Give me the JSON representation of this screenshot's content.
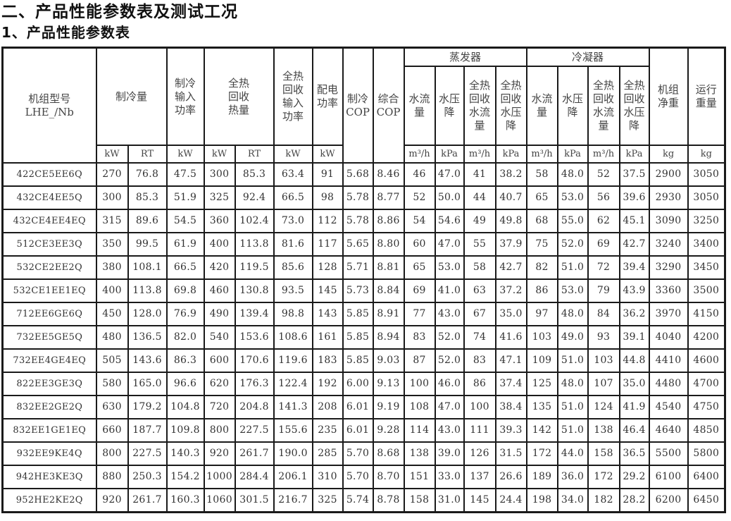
{
  "title": "二、产品性能参数表及测试工况",
  "subtitle": "1、产品性能参数表",
  "table": {
    "headers": {
      "model": "机组型号\nLHE_/Nb",
      "cooling_capacity": "制冷量",
      "cooling_input": "制冷\n输入\n功率",
      "heat_recovery": "全热\n回收\n热量",
      "heat_recovery_input": "全热\n回收\n输入\n功率",
      "power_distribution": "配电\n功率",
      "cooling_cop": "制冷\nCOP",
      "overall_cop": "综合\nCOP",
      "evaporator": "蒸发器",
      "condenser": "冷凝器",
      "water_flow": "水流\n量",
      "pressure_drop": "水压\n降",
      "hr_water_flow": "全热\n回收\n水流\n量",
      "hr_pressure_drop": "全热\n回收\n水压\n降",
      "net_weight": "机组\n净重",
      "operating_weight": "运行\n重量"
    },
    "units": [
      "kW",
      "RT",
      "kW",
      "kW",
      "RT",
      "kW",
      "kW",
      "m³/h",
      "kPa",
      "m³/h",
      "kPa",
      "m³/h",
      "kPa",
      "m³/h",
      "kPa",
      "kg",
      "kg"
    ],
    "rows": [
      [
        "422CE5EE6Q",
        "270",
        "76.8",
        "47.5",
        "300",
        "85.3",
        "63.4",
        "91",
        "5.68",
        "8.46",
        "46",
        "47.0",
        "41",
        "38.2",
        "58",
        "48.0",
        "52",
        "37.5",
        "2900",
        "3050"
      ],
      [
        "432CE4EE5Q",
        "300",
        "85.3",
        "51.9",
        "325",
        "92.4",
        "66.5",
        "98",
        "5.78",
        "8.77",
        "52",
        "50.0",
        "44",
        "40.7",
        "65",
        "53.0",
        "56",
        "39.6",
        "2930",
        "3050"
      ],
      [
        "432CE4EE4EQ",
        "315",
        "89.6",
        "54.5",
        "360",
        "102.4",
        "73.0",
        "112",
        "5.78",
        "8.86",
        "54",
        "54.6",
        "49",
        "49.8",
        "68",
        "55.0",
        "62",
        "45.1",
        "3090",
        "3250"
      ],
      [
        "512CE3EE3Q",
        "350",
        "99.5",
        "61.9",
        "400",
        "113.8",
        "81.6",
        "117",
        "5.65",
        "8.80",
        "60",
        "47.0",
        "55",
        "37.9",
        "75",
        "52.0",
        "69",
        "42.7",
        "3240",
        "3400"
      ],
      [
        "532CE2EE2Q",
        "380",
        "108.1",
        "66.5",
        "420",
        "119.5",
        "85.6",
        "128",
        "5.71",
        "8.81",
        "65",
        "53.0",
        "58",
        "42.7",
        "82",
        "51.0",
        "72",
        "39.4",
        "3290",
        "3450"
      ],
      [
        "532CE1EE1EQ",
        "400",
        "113.8",
        "69.8",
        "460",
        "130.8",
        "93.5",
        "145",
        "5.73",
        "8.84",
        "69",
        "41.0",
        "63",
        "37.2",
        "86",
        "53.0",
        "79",
        "43.9",
        "3360",
        "3500"
      ],
      [
        "712EE6GE6Q",
        "450",
        "128.0",
        "76.9",
        "490",
        "139.4",
        "98.8",
        "143",
        "5.85",
        "8.91",
        "77",
        "43.0",
        "67",
        "35.0",
        "97",
        "48.0",
        "84",
        "36.2",
        "3970",
        "4150"
      ],
      [
        "732EE5GE5Q",
        "480",
        "136.5",
        "82.0",
        "540",
        "153.6",
        "108.6",
        "161",
        "5.85",
        "8.94",
        "83",
        "52.0",
        "74",
        "41.6",
        "103",
        "49.0",
        "93",
        "39.1",
        "4040",
        "4200"
      ],
      [
        "732EE4GE4EQ",
        "505",
        "143.6",
        "86.3",
        "600",
        "170.6",
        "119.6",
        "183",
        "5.85",
        "9.03",
        "87",
        "52.0",
        "83",
        "47.1",
        "109",
        "51.0",
        "103",
        "44.8",
        "4410",
        "4600"
      ],
      [
        "822EE3GE3Q",
        "580",
        "165.0",
        "96.6",
        "620",
        "176.3",
        "122.4",
        "192",
        "6.00",
        "9.13",
        "100",
        "46.0",
        "86",
        "37.4",
        "125",
        "48.0",
        "107",
        "35.0",
        "4480",
        "4700"
      ],
      [
        "832EE2GE2Q",
        "630",
        "179.2",
        "104.8",
        "720",
        "204.8",
        "141.3",
        "208",
        "6.01",
        "9.19",
        "108",
        "47.0",
        "100",
        "38.4",
        "135",
        "51.0",
        "124",
        "41.9",
        "4540",
        "4750"
      ],
      [
        "832EE1GE1EQ",
        "660",
        "187.7",
        "109.8",
        "800",
        "227.5",
        "155.6",
        "235",
        "6.01",
        "9.28",
        "114",
        "43.0",
        "111",
        "39.3",
        "142",
        "51.0",
        "138",
        "46.4",
        "4640",
        "4850"
      ],
      [
        "932EE9KE4Q",
        "800",
        "227.5",
        "140.3",
        "920",
        "261.7",
        "190.0",
        "285",
        "5.70",
        "8.68",
        "138",
        "39.0",
        "126",
        "31.5",
        "172",
        "44.0",
        "158",
        "36.5",
        "5500",
        "5800"
      ],
      [
        "942HE3KE3Q",
        "880",
        "250.3",
        "154.2",
        "1000",
        "284.4",
        "206.1",
        "310",
        "5.70",
        "8.70",
        "151",
        "33.0",
        "137",
        "26.6",
        "189",
        "36.0",
        "172",
        "29.2",
        "6100",
        "6400"
      ],
      [
        "952HE2KE2Q",
        "920",
        "261.7",
        "160.3",
        "1060",
        "301.5",
        "216.7",
        "325",
        "5.74",
        "8.78",
        "158",
        "31.0",
        "145",
        "24.4",
        "198",
        "34.0",
        "182",
        "28.2",
        "6200",
        "6450"
      ]
    ]
  }
}
